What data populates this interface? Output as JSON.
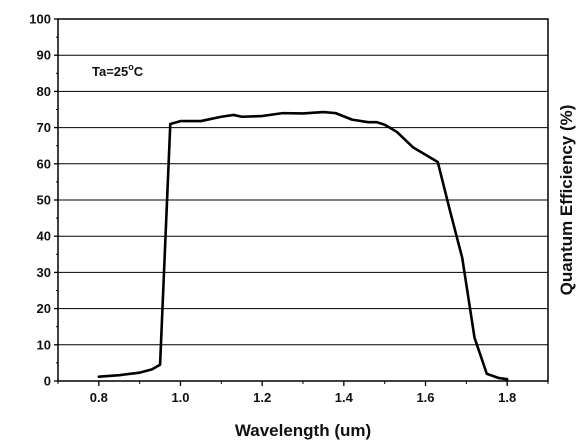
{
  "chart_data": {
    "type": "line",
    "xlabel": "Wavelength (um)",
    "ylabel": "Quantum Efficiency (%)",
    "xlim": [
      0.7,
      1.9
    ],
    "ylim": [
      0,
      100
    ],
    "x_ticks": [
      0.8,
      1.0,
      1.2,
      1.4,
      1.6,
      1.8
    ],
    "x_tick_labels": [
      "0.8",
      "1.0",
      "1.2",
      "1.4",
      "1.6",
      "1.8"
    ],
    "y_ticks": [
      0,
      10,
      20,
      30,
      40,
      50,
      60,
      70,
      80,
      90,
      100
    ],
    "y_tick_labels": [
      "0",
      "10",
      "20",
      "30",
      "40",
      "50",
      "60",
      "70",
      "80",
      "90",
      "100"
    ],
    "grid": "horizontal",
    "annotation": {
      "text_main": "Ta=25",
      "text_super": "o",
      "text_unit": "C"
    },
    "series": [
      {
        "color": "#000000",
        "points": [
          [
            0.8,
            1.2
          ],
          [
            0.85,
            1.6
          ],
          [
            0.9,
            2.3
          ],
          [
            0.93,
            3.2
          ],
          [
            0.95,
            4.5
          ],
          [
            0.975,
            71.0
          ],
          [
            1.0,
            71.8
          ],
          [
            1.05,
            71.8
          ],
          [
            1.1,
            73.0
          ],
          [
            1.13,
            73.5
          ],
          [
            1.15,
            73.0
          ],
          [
            1.2,
            73.2
          ],
          [
            1.25,
            74.0
          ],
          [
            1.3,
            73.9
          ],
          [
            1.35,
            74.3
          ],
          [
            1.38,
            74.0
          ],
          [
            1.42,
            72.2
          ],
          [
            1.46,
            71.5
          ],
          [
            1.48,
            71.5
          ],
          [
            1.5,
            70.8
          ],
          [
            1.53,
            68.8
          ],
          [
            1.57,
            64.5
          ],
          [
            1.6,
            62.5
          ],
          [
            1.63,
            60.5
          ],
          [
            1.66,
            47.0
          ],
          [
            1.69,
            34.0
          ],
          [
            1.72,
            12.0
          ],
          [
            1.75,
            2.0
          ],
          [
            1.78,
            0.8
          ],
          [
            1.8,
            0.5
          ]
        ]
      }
    ]
  }
}
